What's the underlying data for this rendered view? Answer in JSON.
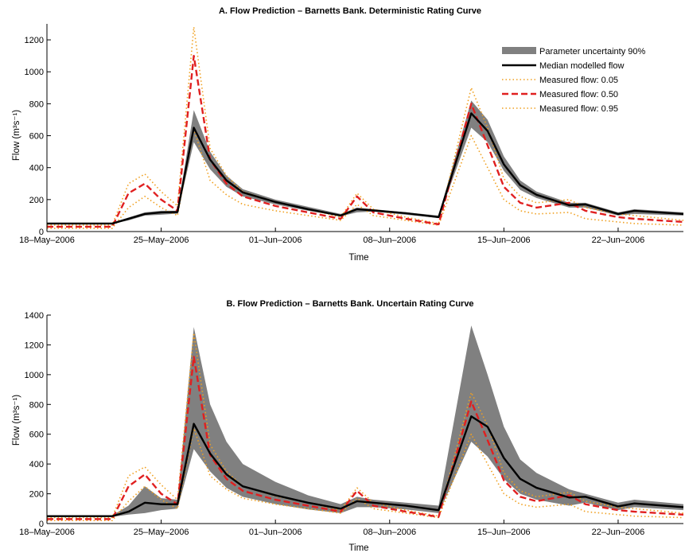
{
  "chart_data": [
    {
      "type": "line",
      "title": "A. Flow Prediction – Barnetts Bank. Deterministic Rating Curve",
      "xlabel": "Time",
      "ylabel": "Flow (m³s⁻¹)",
      "ylim": [
        0,
        1300
      ],
      "yticks": [
        0,
        200,
        400,
        600,
        800,
        1000,
        1200
      ],
      "x_axis_type": "date",
      "xlim": [
        "2006-05-18",
        "2006-06-26"
      ],
      "xtick_labels": [
        "18–May–2006",
        "25–May–2006",
        "01–Jun–2006",
        "08–Jun–2006",
        "15–Jun–2006",
        "22–Jun–2006"
      ],
      "xtick_dates": [
        "2006-05-18",
        "2006-05-25",
        "2006-06-01",
        "2006-06-08",
        "2006-06-15",
        "2006-06-22"
      ],
      "legend_position": "top-right",
      "x": [
        "2006-05-18",
        "2006-05-22",
        "2006-05-23",
        "2006-05-24",
        "2006-05-25",
        "2006-05-26",
        "2006-05-27",
        "2006-05-28",
        "2006-05-29",
        "2006-05-30",
        "2006-06-01",
        "2006-06-03",
        "2006-06-05",
        "2006-06-06",
        "2006-06-07",
        "2006-06-09",
        "2006-06-11",
        "2006-06-13",
        "2006-06-14",
        "2006-06-15",
        "2006-06-16",
        "2006-06-17",
        "2006-06-19",
        "2006-06-20",
        "2006-06-22",
        "2006-06-23",
        "2006-06-26"
      ],
      "series": [
        {
          "name": "Parameter uncertainty 90%",
          "style": "band",
          "color": "#808080",
          "lower": [
            48,
            48,
            70,
            100,
            105,
            112,
            560,
            390,
            280,
            220,
            170,
            130,
            95,
            120,
            125,
            105,
            85,
            650,
            560,
            380,
            260,
            210,
            150,
            150,
            100,
            110,
            100
          ],
          "upper": [
            55,
            55,
            88,
            120,
            130,
            130,
            760,
            500,
            350,
            265,
            200,
            155,
            110,
            150,
            140,
            120,
            100,
            820,
            700,
            470,
            320,
            250,
            180,
            180,
            120,
            140,
            120
          ]
        },
        {
          "name": "Median modelled flow",
          "style": "solid",
          "color": "#000000",
          "values": [
            50,
            50,
            80,
            110,
            120,
            122,
            650,
            450,
            320,
            245,
            185,
            140,
            100,
            140,
            132,
            115,
            90,
            740,
            630,
            420,
            290,
            230,
            165,
            170,
            110,
            130,
            110
          ]
        },
        {
          "name": "Measured flow: 0.05",
          "style": "dotted",
          "color": "#f0a020",
          "values": [
            20,
            20,
            150,
            220,
            150,
            100,
            640,
            320,
            230,
            170,
            130,
            100,
            70,
            170,
            100,
            70,
            40,
            600,
            400,
            200,
            130,
            110,
            120,
            80,
            60,
            50,
            40
          ]
        },
        {
          "name": "Measured flow: 0.50",
          "style": "dashed",
          "color": "#e02020",
          "values": [
            30,
            30,
            240,
            300,
            200,
            130,
            1100,
            450,
            300,
            220,
            160,
            120,
            80,
            220,
            120,
            80,
            45,
            800,
            540,
            280,
            180,
            150,
            180,
            130,
            90,
            80,
            60
          ]
        },
        {
          "name": "Measured flow: 0.95",
          "style": "dotted",
          "color": "#f0a020",
          "values": [
            40,
            40,
            300,
            360,
            250,
            160,
            1280,
            520,
            350,
            250,
            185,
            140,
            90,
            240,
            140,
            90,
            50,
            900,
            650,
            330,
            220,
            180,
            200,
            150,
            110,
            100,
            70
          ]
        }
      ]
    },
    {
      "type": "line",
      "title": "B. Flow Prediction – Barnetts Bank. Uncertain Rating Curve",
      "xlabel": "Time",
      "ylabel": "Flow (m³s⁻¹)",
      "ylim": [
        0,
        1400
      ],
      "yticks": [
        0,
        200,
        400,
        600,
        800,
        1000,
        1200,
        1400
      ],
      "x_axis_type": "date",
      "xlim": [
        "2006-05-18",
        "2006-06-26"
      ],
      "xtick_labels": [
        "18–May–2006",
        "25–May–2006",
        "01–Jun–2006",
        "08–Jun–2006",
        "15–Jun–2006",
        "22–Jun–2006"
      ],
      "xtick_dates": [
        "2006-05-18",
        "2006-05-25",
        "2006-06-01",
        "2006-06-08",
        "2006-06-15",
        "2006-06-22"
      ],
      "x": [
        "2006-05-18",
        "2006-05-22",
        "2006-05-23",
        "2006-05-24",
        "2006-05-25",
        "2006-05-26",
        "2006-05-27",
        "2006-05-28",
        "2006-05-29",
        "2006-05-30",
        "2006-06-01",
        "2006-06-03",
        "2006-06-05",
        "2006-06-06",
        "2006-06-07",
        "2006-06-09",
        "2006-06-11",
        "2006-06-13",
        "2006-06-14",
        "2006-06-15",
        "2006-06-16",
        "2006-06-17",
        "2006-06-19",
        "2006-06-20",
        "2006-06-22",
        "2006-06-23",
        "2006-06-26"
      ],
      "series": [
        {
          "name": "Parameter uncertainty 90%",
          "style": "band",
          "color": "#808080",
          "lower": [
            45,
            45,
            60,
            70,
            90,
            100,
            500,
            350,
            240,
            180,
            130,
            95,
            70,
            110,
            110,
            95,
            70,
            550,
            450,
            300,
            200,
            160,
            120,
            140,
            90,
            110,
            90
          ],
          "upper": [
            55,
            55,
            120,
            250,
            170,
            160,
            1320,
            800,
            550,
            400,
            280,
            190,
            130,
            180,
            160,
            140,
            120,
            1330,
            1000,
            650,
            430,
            340,
            230,
            200,
            140,
            160,
            130
          ]
        },
        {
          "name": "Median modelled flow",
          "style": "solid",
          "color": "#000000",
          "values": [
            50,
            50,
            80,
            140,
            130,
            130,
            670,
            470,
            330,
            250,
            190,
            140,
            100,
            150,
            140,
            120,
            90,
            720,
            650,
            440,
            300,
            240,
            175,
            180,
            115,
            135,
            110
          ]
        },
        {
          "name": "Measured flow: 0.05",
          "style": "dotted",
          "color": "#f0a020",
          "values": [
            20,
            20,
            150,
            250,
            160,
            100,
            640,
            320,
            230,
            170,
            130,
            100,
            70,
            170,
            100,
            70,
            40,
            600,
            400,
            200,
            130,
            110,
            130,
            80,
            60,
            50,
            40
          ]
        },
        {
          "name": "Measured flow: 0.50",
          "style": "dashed",
          "color": "#e02020",
          "values": [
            30,
            30,
            250,
            330,
            200,
            130,
            1120,
            460,
            300,
            220,
            160,
            120,
            80,
            220,
            120,
            80,
            45,
            820,
            560,
            290,
            180,
            150,
            190,
            130,
            90,
            80,
            60
          ]
        },
        {
          "name": "Measured flow: 0.95",
          "style": "dotted",
          "color": "#f0a020",
          "values": [
            40,
            40,
            320,
            380,
            260,
            160,
            1280,
            530,
            350,
            250,
            185,
            140,
            90,
            240,
            140,
            90,
            50,
            880,
            660,
            340,
            220,
            180,
            210,
            150,
            110,
            100,
            70
          ]
        }
      ]
    }
  ]
}
